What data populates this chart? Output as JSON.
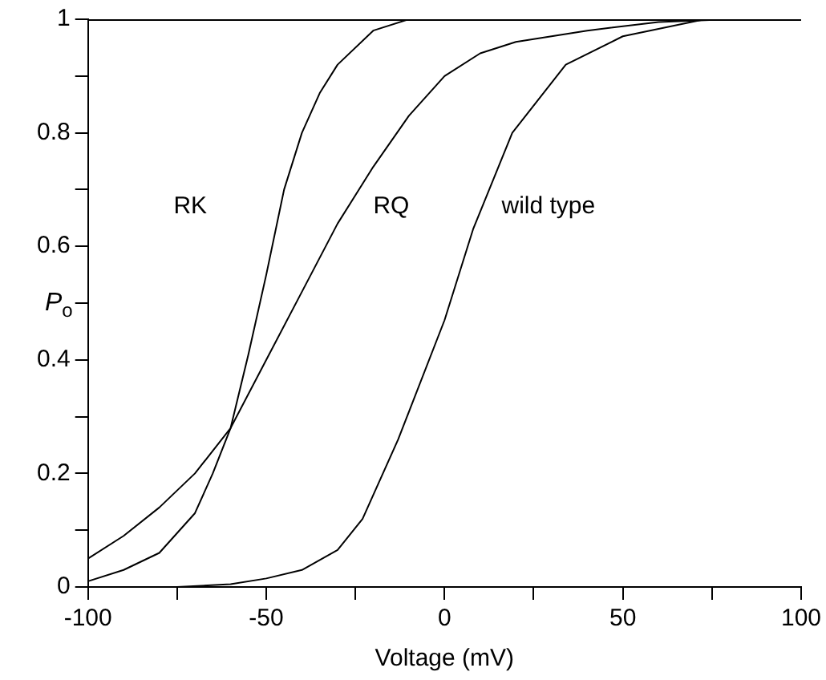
{
  "chart_data": {
    "type": "line",
    "xlabel": "Voltage (mV)",
    "ylabel": "P$_{o}$",
    "xlim": [
      -100,
      100
    ],
    "ylim": [
      0,
      1
    ],
    "xticks": [
      -100,
      {
        "value": -75,
        "label": null
      },
      -50,
      {
        "value": -25,
        "label": null
      },
      0,
      {
        "value": 25,
        "label": null
      },
      50,
      {
        "value": 75,
        "label": null
      },
      100
    ],
    "yticks": [
      0,
      {
        "value": 0.1,
        "label": null
      },
      0.2,
      {
        "value": 0.3,
        "label": null
      },
      0.4,
      {
        "value": 0.5,
        "label": null
      },
      0.6,
      {
        "value": 0.7,
        "label": null
      },
      0.8,
      {
        "value": 0.9,
        "label": null
      },
      1
    ],
    "grid": false,
    "legend": false,
    "marker": "none",
    "line_style": "solid",
    "series": [
      {
        "color": "#000000",
        "x": [
          -100,
          -90,
          -80,
          -70,
          -65,
          -60,
          -55,
          -50,
          -45,
          -40,
          -35,
          -30,
          -20,
          -10
        ],
        "values": [
          0.01,
          0.03,
          0.06,
          0.13,
          0.2,
          0.28,
          0.41,
          0.55,
          0.7,
          0.8,
          0.87,
          0.92,
          0.98,
          1
        ]
      },
      {
        "color": "#000000",
        "x": [
          -100,
          -90,
          -80,
          -70,
          -60,
          -50,
          -40,
          -30,
          -20,
          -10,
          0,
          10,
          20,
          40,
          60,
          80
        ],
        "values": [
          0.05,
          0.09,
          0.14,
          0.2,
          0.28,
          0.4,
          0.52,
          0.64,
          0.74,
          0.83,
          0.9,
          0.94,
          0.96,
          0.98,
          0.995,
          1
        ]
      },
      {
        "color": "#000000",
        "x": [
          -75,
          -60,
          -50,
          -40,
          -30,
          -23,
          -13,
          0,
          8,
          19,
          34,
          50,
          73
        ],
        "values": [
          0,
          0.005,
          0.015,
          0.03,
          0.065,
          0.12,
          0.26,
          0.47,
          0.63,
          0.8,
          0.92,
          0.97,
          1
        ]
      }
    ],
    "annotations": [
      "RK",
      "RQ",
      "wild type"
    ]
  }
}
